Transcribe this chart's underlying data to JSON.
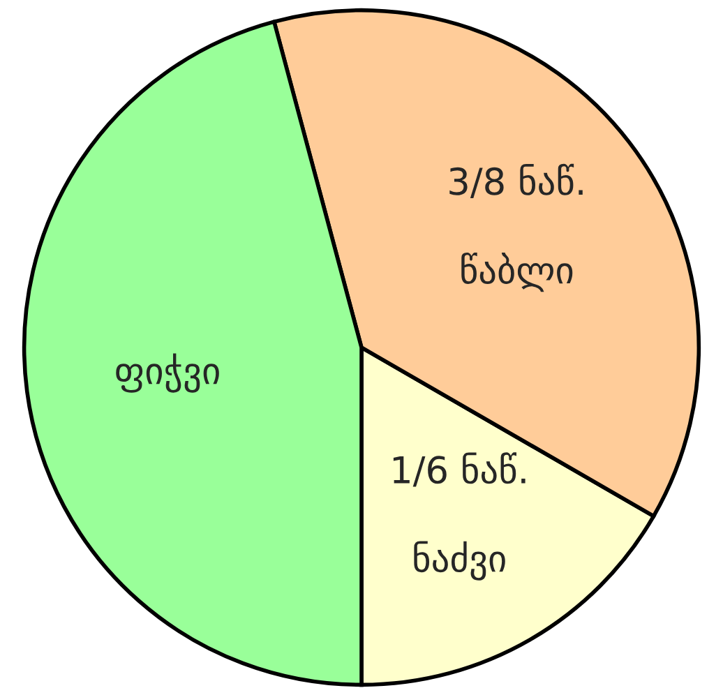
{
  "chart_data": {
    "type": "pie",
    "categories": [
      "ნაძვი",
      "წაბლი",
      "ფიჭვი"
    ],
    "values": [
      16.67,
      37.5,
      45.83
    ],
    "value_labels": [
      "1/6 ნაწ.",
      "3/8 ნაწ.",
      null
    ],
    "colors": [
      "#ffffcc",
      "#ffcc99",
      "#99ff99"
    ],
    "legend": false
  }
}
